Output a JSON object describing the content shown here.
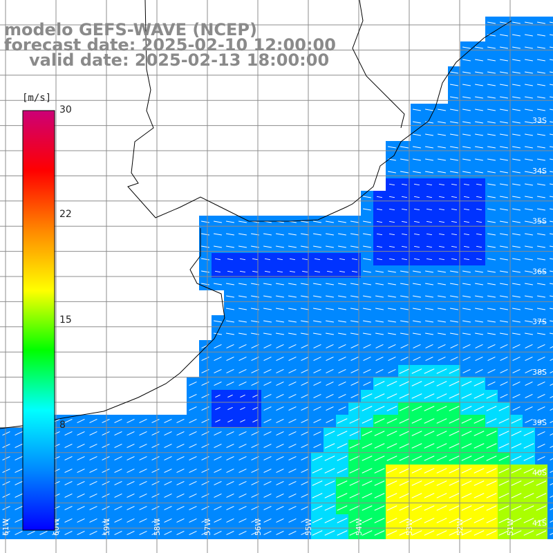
{
  "title": {
    "model": "modelo GEFS-WAVE (NCEP)",
    "forecast": "forecast date: 2025-02-10 12:00:00",
    "valid": "valid date: 2025-02-13 18:00:00"
  },
  "colorbar": {
    "unit": "[m/s]",
    "min": 0,
    "max": 30,
    "ticks": [
      "30",
      "22",
      "15",
      "8"
    ],
    "colors": [
      "#0000ff",
      "#0088ff",
      "#00ffff",
      "#00ff00",
      "#ffff00",
      "#ff8800",
      "#ff0000",
      "#cc0077"
    ]
  },
  "map": {
    "lon_labels": [
      "61W",
      "60W",
      "59W",
      "58W",
      "57W",
      "56W",
      "55W",
      "54W",
      "53W",
      "52W",
      "51W"
    ],
    "lat_labels": [
      "33S",
      "34S",
      "35S",
      "36S",
      "37S",
      "38S",
      "39S",
      "40S",
      "41S"
    ],
    "ocean_colors": {
      "calm": "#0033ff",
      "light": "#0088ff",
      "moderate": "#00ddff",
      "fresh": "#00ff66",
      "strong": "#aaff00",
      "gale": "#ffff00"
    },
    "land_color": "#ffffff",
    "grid_color": "#8c8c8c"
  }
}
